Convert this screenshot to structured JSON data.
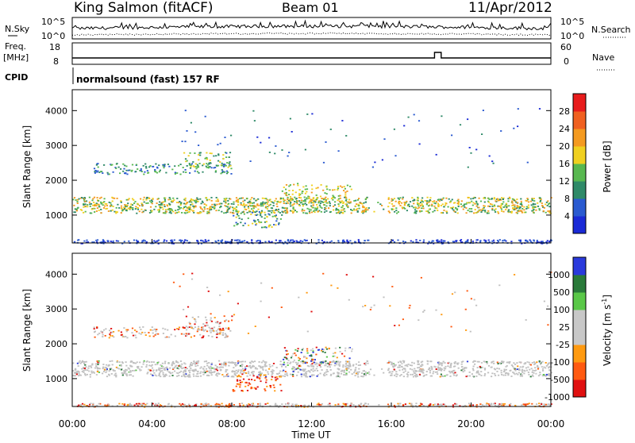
{
  "header": {
    "station": "King Salmon (fitACF)",
    "beam": "Beam 01",
    "date": "11/Apr/2012"
  },
  "side_labels": {
    "nsky": "N.Sky",
    "nsearch": "N.Search",
    "freq_line1": "Freq.",
    "freq_line2": "[MHz]",
    "nave": "Nave",
    "cpid": "CPID"
  },
  "noise_axis": {
    "left_top": "10^5",
    "left_bottom": "10^0",
    "right_top": "10^5",
    "right_bottom": "10^0"
  },
  "freq_axis": {
    "left_top": "18",
    "left_bottom": "8",
    "right_top": "60",
    "right_bottom": "0"
  },
  "cpid_text": "normalsound (fast) 157 RF",
  "colors": {
    "power": [
      "#1a2ad6",
      "#2a5ad0",
      "#2f8a68",
      "#58b850",
      "#f0d020",
      "#f49a20",
      "#f06020",
      "#e81c1c"
    ],
    "velocity": [
      "#e01010",
      "#ff5a10",
      "#ff9a10",
      "#c8c8c8",
      "#c8c8c8",
      "#5ac848",
      "#2a7a3a",
      "#2a3adc"
    ],
    "grey": "#c0c0c0"
  },
  "chart_data": [
    {
      "type": "line",
      "name": "noise",
      "ylim": [
        1,
        100000
      ],
      "log_scale": true
    },
    {
      "type": "line",
      "name": "frequency",
      "ylim": [
        8,
        18
      ],
      "events": [
        {
          "start": "18:10",
          "end": "18:30",
          "value": 60
        }
      ]
    },
    {
      "type": "heatmap",
      "name": "power",
      "xlabel": "",
      "ylabel": "Slant Range [km]",
      "xlim": [
        "00:00",
        "24:00"
      ],
      "ylim": [
        200,
        4600
      ],
      "yticks": [
        1000,
        2000,
        3000,
        4000
      ],
      "colorbar": {
        "label": "Power [dB]",
        "ticks": [
          4,
          8,
          12,
          16,
          20,
          24,
          28
        ]
      }
    },
    {
      "type": "heatmap",
      "name": "velocity",
      "xlabel": "Time UT",
      "ylabel": "Slant Range [km]",
      "xlim": [
        "00:00",
        "24:00"
      ],
      "ylim": [
        200,
        4600
      ],
      "xticks": [
        "00:00",
        "04:00",
        "08:00",
        "12:00",
        "16:00",
        "20:00",
        "00:00"
      ],
      "yticks": [
        1000,
        2000,
        3000,
        4000
      ],
      "colorbar": {
        "label": "Velocity [m s^-1]",
        "ticks": [
          1000,
          500,
          100,
          25,
          -25,
          -100,
          -500,
          -1000
        ]
      }
    }
  ]
}
